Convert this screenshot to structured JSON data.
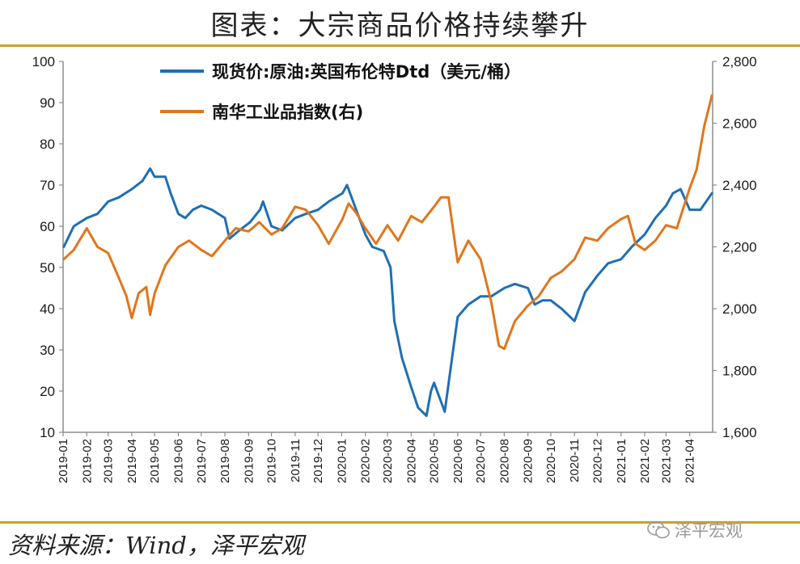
{
  "title": "图表：大宗商品价格持续攀升",
  "source": "资料来源：Wind，泽平宏观",
  "watermark": "泽平宏观",
  "colors": {
    "brent": "#1f6fb2",
    "nanhua": "#e0761c",
    "accent": "#c9a227"
  },
  "chart_data": {
    "type": "line",
    "title": "",
    "xlabel": "",
    "ylabel_left": "",
    "ylabel_right": "",
    "legend_position": "top-center",
    "grid": false,
    "x_ticks": [
      "2019-01",
      "2019-02",
      "2019-03",
      "2019-04",
      "2019-05",
      "2019-06",
      "2019-07",
      "2019-08",
      "2019-09",
      "2019-10",
      "2019-11",
      "2019-12",
      "2020-01",
      "2020-02",
      "2020-03",
      "2020-04",
      "2020-05",
      "2020-06",
      "2020-07",
      "2020-08",
      "2020-09",
      "2020-10",
      "2020-11",
      "2020-12",
      "2021-01",
      "2021-02",
      "2021-03",
      "2021-04"
    ],
    "x_range": [
      "2019-01",
      "2021-05"
    ],
    "y_left": {
      "range": [
        10,
        100
      ],
      "ticks": [
        "100",
        "90",
        "80",
        "70",
        "60",
        "50",
        "40",
        "30",
        "20",
        "10"
      ],
      "tick_values": [
        100,
        90,
        80,
        70,
        60,
        50,
        40,
        30,
        20,
        10
      ]
    },
    "y_right": {
      "range": [
        1600,
        2800
      ],
      "ticks": [
        "2,800",
        "2,600",
        "2,400",
        "2,200",
        "2,000",
        "1,800",
        "1,600"
      ],
      "tick_values": [
        2800,
        2600,
        2400,
        2200,
        2000,
        1800,
        1600
      ]
    },
    "series": [
      {
        "name": "现货价:原油:英国布伦特Dtd（美元/桶）",
        "axis": "left",
        "color": "#1f6fb2",
        "x": [
          "2019-01-02",
          "2019-01-15",
          "2019-02-01",
          "2019-02-15",
          "2019-03-01",
          "2019-03-15",
          "2019-04-01",
          "2019-04-15",
          "2019-04-25",
          "2019-05-01",
          "2019-05-15",
          "2019-05-22",
          "2019-06-01",
          "2019-06-10",
          "2019-06-20",
          "2019-07-01",
          "2019-07-15",
          "2019-08-01",
          "2019-08-07",
          "2019-08-20",
          "2019-09-03",
          "2019-09-16",
          "2019-09-20",
          "2019-10-01",
          "2019-10-15",
          "2019-11-01",
          "2019-11-15",
          "2019-12-01",
          "2019-12-15",
          "2020-01-02",
          "2020-01-08",
          "2020-01-20",
          "2020-02-01",
          "2020-02-10",
          "2020-02-25",
          "2020-03-05",
          "2020-03-10",
          "2020-03-20",
          "2020-04-01",
          "2020-04-10",
          "2020-04-21",
          "2020-04-27",
          "2020-05-01",
          "2020-05-15",
          "2020-06-01",
          "2020-06-15",
          "2020-07-01",
          "2020-07-15",
          "2020-08-01",
          "2020-08-15",
          "2020-09-01",
          "2020-09-10",
          "2020-09-20",
          "2020-10-01",
          "2020-10-15",
          "2020-11-01",
          "2020-11-15",
          "2020-12-01",
          "2020-12-15",
          "2021-01-01",
          "2021-01-15",
          "2021-02-01",
          "2021-02-15",
          "2021-03-01",
          "2021-03-10",
          "2021-03-20",
          "2021-04-01",
          "2021-04-15",
          "2021-04-30"
        ],
        "y": [
          55,
          60,
          62,
          63,
          66,
          67,
          69,
          71,
          74,
          72,
          72,
          68,
          63,
          62,
          64,
          65,
          64,
          62,
          57,
          59,
          61,
          64,
          66,
          60,
          59,
          62,
          63,
          64,
          66,
          68,
          70,
          64,
          58,
          55,
          54,
          50,
          37,
          28,
          21,
          16,
          14,
          20,
          22,
          15,
          38,
          41,
          43,
          43,
          45,
          46,
          45,
          41,
          42,
          42,
          40,
          37,
          44,
          48,
          51,
          52,
          55,
          58,
          62,
          65,
          68,
          69,
          64,
          64,
          68
        ]
      },
      {
        "name": "南华工业品指数(右)",
        "axis": "right",
        "color": "#e0761c",
        "x": [
          "2019-01-02",
          "2019-01-15",
          "2019-02-01",
          "2019-02-15",
          "2019-03-01",
          "2019-03-15",
          "2019-03-25",
          "2019-04-01",
          "2019-04-10",
          "2019-04-20",
          "2019-04-25",
          "2019-05-01",
          "2019-05-15",
          "2019-06-01",
          "2019-06-15",
          "2019-07-01",
          "2019-07-15",
          "2019-08-01",
          "2019-08-15",
          "2019-09-01",
          "2019-09-15",
          "2019-10-01",
          "2019-10-15",
          "2019-11-01",
          "2019-11-15",
          "2019-12-01",
          "2019-12-15",
          "2020-01-02",
          "2020-01-10",
          "2020-01-20",
          "2020-02-01",
          "2020-02-15",
          "2020-03-01",
          "2020-03-15",
          "2020-04-01",
          "2020-04-15",
          "2020-05-01",
          "2020-05-10",
          "2020-05-20",
          "2020-06-01",
          "2020-06-15",
          "2020-07-01",
          "2020-07-15",
          "2020-07-25",
          "2020-08-01",
          "2020-08-15",
          "2020-09-01",
          "2020-09-15",
          "2020-10-01",
          "2020-10-15",
          "2020-11-01",
          "2020-11-15",
          "2020-12-01",
          "2020-12-15",
          "2021-01-01",
          "2021-01-10",
          "2021-01-20",
          "2021-02-01",
          "2021-02-15",
          "2021-03-01",
          "2021-03-15",
          "2021-04-01",
          "2021-04-10",
          "2021-04-20",
          "2021-04-30"
        ],
        "y": [
          2160,
          2190,
          2260,
          2200,
          2180,
          2100,
          2040,
          1970,
          2050,
          2070,
          1980,
          2050,
          2140,
          2200,
          2220,
          2190,
          2170,
          2220,
          2260,
          2250,
          2280,
          2240,
          2260,
          2330,
          2320,
          2270,
          2210,
          2290,
          2340,
          2310,
          2260,
          2210,
          2270,
          2220,
          2300,
          2280,
          2330,
          2360,
          2360,
          2150,
          2220,
          2160,
          2020,
          1880,
          1870,
          1960,
          2010,
          2040,
          2100,
          2120,
          2160,
          2230,
          2220,
          2260,
          2290,
          2300,
          2210,
          2190,
          2220,
          2270,
          2260,
          2390,
          2450,
          2590,
          2690
        ]
      }
    ]
  }
}
